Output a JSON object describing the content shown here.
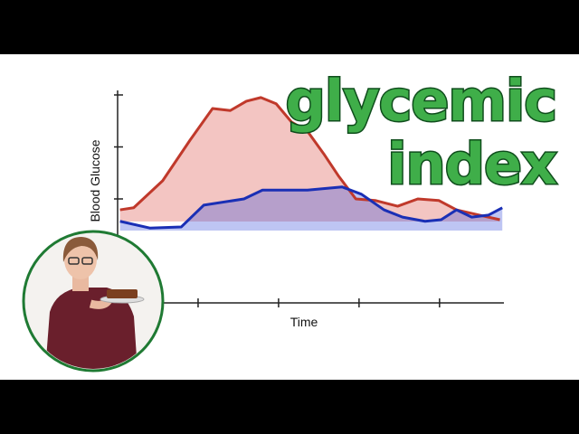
{
  "chart_data": {
    "type": "line",
    "title_lines": [
      "glycemic",
      "index"
    ],
    "x_label": "Time",
    "y_label": "Blood Glucose",
    "xlim": [
      0,
      4.8
    ],
    "xticks": [
      1,
      2,
      3,
      4
    ],
    "ylim": [
      0,
      4
    ],
    "yticks": [
      2,
      3,
      4
    ],
    "grid": false,
    "series": [
      {
        "color": "#c0392b",
        "x": [
          0.03,
          0.2,
          0.56,
          0.9,
          1.18,
          1.4,
          1.6,
          1.78,
          1.97,
          2.16,
          2.36,
          2.56,
          2.75,
          2.96,
          3.2,
          3.48,
          3.73,
          3.99,
          4.21,
          4.49,
          4.75
        ],
        "values": [
          1.79,
          1.83,
          2.35,
          3.13,
          3.74,
          3.7,
          3.88,
          3.95,
          3.83,
          3.48,
          3.3,
          2.87,
          2.43,
          2.0,
          1.97,
          1.86,
          2.0,
          1.97,
          1.79,
          1.69,
          1.6
        ]
      },
      {
        "color": "#1a2fb5",
        "x": [
          0.03,
          0.4,
          0.79,
          1.07,
          1.57,
          1.8,
          2.36,
          2.79,
          3.03,
          3.31,
          3.54,
          3.82,
          4.02,
          4.21,
          4.4,
          4.61,
          4.78
        ],
        "values": [
          1.57,
          1.44,
          1.46,
          1.88,
          2.0,
          2.17,
          2.17,
          2.23,
          2.09,
          1.79,
          1.65,
          1.57,
          1.6,
          1.79,
          1.65,
          1.69,
          1.83
        ]
      }
    ]
  }
}
